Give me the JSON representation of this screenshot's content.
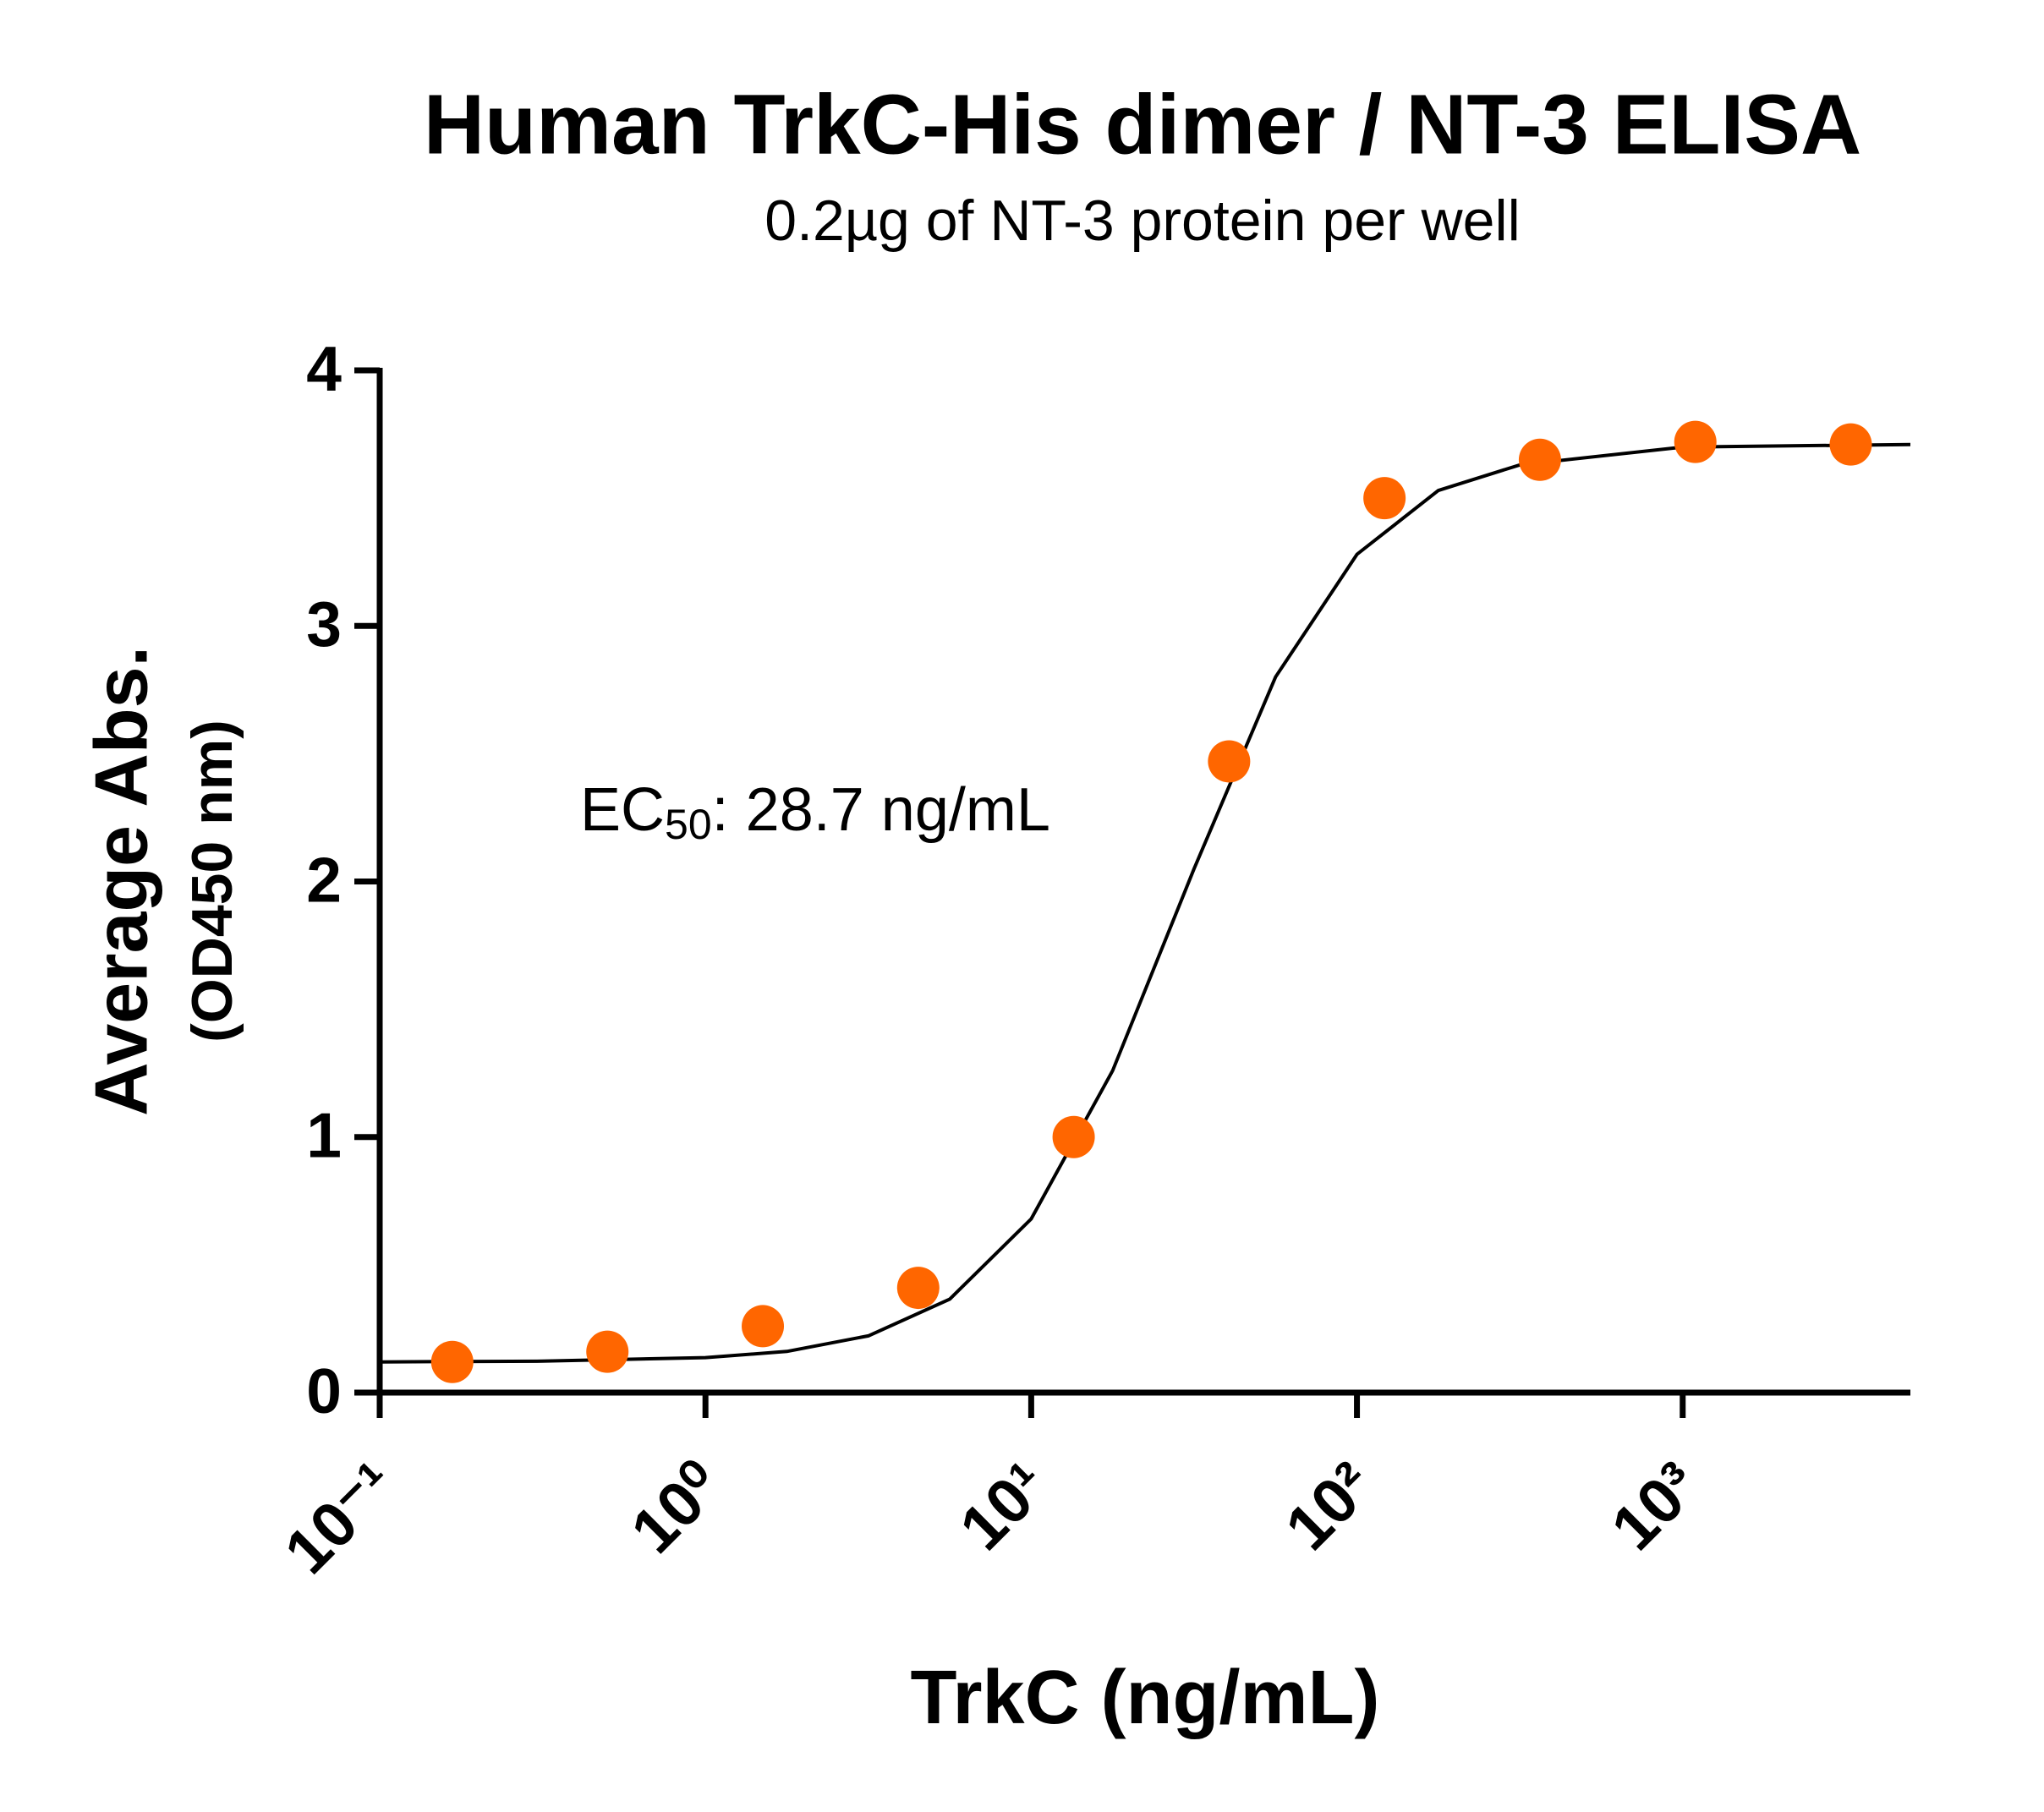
{
  "chart_data": {
    "type": "scatter",
    "title": "Human TrkC-His dimer / NT-3 ELISA",
    "subtitle": "0.2µg of NT-3 protein per well",
    "x_label": "TrkC (ng/mL)",
    "y_label": [
      "Average Abs.",
      "(OD450 nm)"
    ],
    "annotation": {
      "text": "EC",
      "subscript": "50",
      "suffix": ": 28.7 ng/mL"
    },
    "xscale": "log",
    "xlim": [
      0.1,
      5000
    ],
    "xticks": [
      {
        "value": 0.1,
        "label": "10⁻¹"
      },
      {
        "value": 1,
        "label": "10⁰"
      },
      {
        "value": 10,
        "label": "10¹"
      },
      {
        "value": 100,
        "label": "10²"
      },
      {
        "value": 1000,
        "label": "10³"
      }
    ],
    "ylim": [
      0,
      4
    ],
    "yticks": [
      0,
      1,
      2,
      3,
      4
    ],
    "grid": false,
    "series": [
      {
        "type": "line",
        "color": "#000000",
        "x": [
          0.1,
          0.316,
          1,
          1.778,
          3.162,
          5.623,
          10,
          17.78,
          31.62,
          56.23,
          100,
          177.8,
          316.2,
          1000,
          5000
        ],
        "values": [
          0.12,
          0.123,
          0.137,
          0.161,
          0.222,
          0.366,
          0.68,
          1.26,
          2.05,
          2.8,
          3.28,
          3.53,
          3.63,
          3.7,
          3.71
        ]
      },
      {
        "type": "scatter",
        "color": "#ff6600",
        "x": [
          0.167,
          0.5,
          1.5,
          4.5,
          13.5,
          40.5,
          121.5,
          364.5,
          1093.5,
          3280.5
        ],
        "values": [
          0.12,
          0.16,
          0.26,
          0.41,
          1.0,
          2.47,
          3.5,
          3.65,
          3.72,
          3.71
        ]
      }
    ]
  }
}
